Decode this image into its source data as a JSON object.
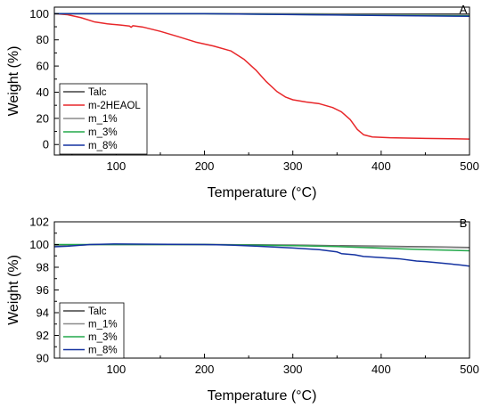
{
  "chart_data": [
    {
      "panel": "A",
      "type": "line",
      "xlabel": "Temperature (°C)",
      "ylabel": "Weight (%)",
      "xlim": [
        30,
        500
      ],
      "ylim": [
        -8,
        105
      ],
      "xticks": [
        100,
        200,
        300,
        400,
        500
      ],
      "yticks": [
        0,
        20,
        40,
        60,
        80,
        100
      ],
      "legend_position": "bottom-left",
      "series": [
        {
          "name": "Talc",
          "color": "#404040",
          "points": [
            [
              30,
              100
            ],
            [
              100,
              100
            ],
            [
              200,
              100
            ],
            [
              300,
              99.9
            ],
            [
              400,
              99.8
            ],
            [
              500,
              99.7
            ]
          ]
        },
        {
          "name": "m-2HEAOL",
          "color": "#e8272a",
          "points": [
            [
              30,
              100
            ],
            [
              45,
              99.2
            ],
            [
              60,
              97
            ],
            [
              75,
              93.8
            ],
            [
              90,
              92.2
            ],
            [
              105,
              91.3
            ],
            [
              115,
              90.5
            ],
            [
              117,
              89.6
            ],
            [
              119,
              90.8
            ],
            [
              130,
              89.8
            ],
            [
              150,
              86.5
            ],
            [
              170,
              82.5
            ],
            [
              190,
              78.3
            ],
            [
              210,
              75.3
            ],
            [
              230,
              71.5
            ],
            [
              245,
              65
            ],
            [
              258,
              57
            ],
            [
              270,
              48
            ],
            [
              282,
              40.5
            ],
            [
              292,
              36.2
            ],
            [
              300,
              34.2
            ],
            [
              315,
              32.5
            ],
            [
              330,
              31.2
            ],
            [
              345,
              28.3
            ],
            [
              355,
              25
            ],
            [
              365,
              19
            ],
            [
              373,
              11.5
            ],
            [
              380,
              7.5
            ],
            [
              390,
              5.8
            ],
            [
              410,
              5.2
            ],
            [
              450,
              4.7
            ],
            [
              480,
              4.4
            ],
            [
              500,
              4.2
            ]
          ]
        },
        {
          "name": "m_1%",
          "color": "#8a8a8a",
          "points": [
            [
              30,
              100
            ],
            [
              100,
              100
            ],
            [
              200,
              100
            ],
            [
              300,
              99.6
            ],
            [
              400,
              99.3
            ],
            [
              500,
              99.0
            ]
          ]
        },
        {
          "name": "m_3%",
          "color": "#22a84a",
          "points": [
            [
              30,
              100
            ],
            [
              100,
              100
            ],
            [
              200,
              100
            ],
            [
              300,
              99.4
            ],
            [
              400,
              98.8
            ],
            [
              500,
              98.4
            ]
          ]
        },
        {
          "name": "m_8%",
          "color": "#1432a0",
          "points": [
            [
              30,
              100
            ],
            [
              100,
              100
            ],
            [
              200,
              100
            ],
            [
              300,
              99.3
            ],
            [
              400,
              98.6
            ],
            [
              500,
              98.0
            ]
          ]
        }
      ]
    },
    {
      "panel": "B",
      "type": "line",
      "xlabel": "Temperature (°C)",
      "ylabel": "Weight (%)",
      "xlim": [
        30,
        500
      ],
      "ylim": [
        90,
        102
      ],
      "xticks": [
        100,
        200,
        300,
        400,
        500
      ],
      "yticks": [
        90,
        92,
        94,
        96,
        98,
        100,
        102
      ],
      "legend_position": "bottom-left",
      "series": [
        {
          "name": "Talc",
          "color": "#404040",
          "points": [
            [
              30,
              99.85
            ],
            [
              50,
              99.95
            ],
            [
              80,
              100
            ],
            [
              200,
              100
            ],
            [
              300,
              99.95
            ],
            [
              400,
              99.85
            ],
            [
              450,
              99.8
            ],
            [
              500,
              99.75
            ]
          ]
        },
        {
          "name": "m_1%",
          "color": "#8a8a8a",
          "points": [
            [
              30,
              99.9
            ],
            [
              80,
              100
            ],
            [
              200,
              100
            ],
            [
              300,
              99.92
            ],
            [
              400,
              99.82
            ],
            [
              500,
              99.72
            ]
          ]
        },
        {
          "name": "m_3%",
          "color": "#22a84a",
          "points": [
            [
              30,
              100
            ],
            [
              80,
              100
            ],
            [
              200,
              100
            ],
            [
              250,
              99.95
            ],
            [
              300,
              99.9
            ],
            [
              350,
              99.82
            ],
            [
              400,
              99.68
            ],
            [
              450,
              99.55
            ],
            [
              500,
              99.45
            ]
          ]
        },
        {
          "name": "m_8%",
          "color": "#1432a0",
          "points": [
            [
              30,
              99.8
            ],
            [
              45,
              99.85
            ],
            [
              70,
              100
            ],
            [
              100,
              100.05
            ],
            [
              200,
              100
            ],
            [
              230,
              99.95
            ],
            [
              260,
              99.85
            ],
            [
              300,
              99.7
            ],
            [
              330,
              99.55
            ],
            [
              350,
              99.35
            ],
            [
              355,
              99.2
            ],
            [
              370,
              99.1
            ],
            [
              380,
              98.95
            ],
            [
              400,
              98.85
            ],
            [
              420,
              98.75
            ],
            [
              440,
              98.55
            ],
            [
              450,
              98.5
            ],
            [
              470,
              98.35
            ],
            [
              490,
              98.2
            ],
            [
              500,
              98.1
            ]
          ]
        }
      ]
    }
  ]
}
